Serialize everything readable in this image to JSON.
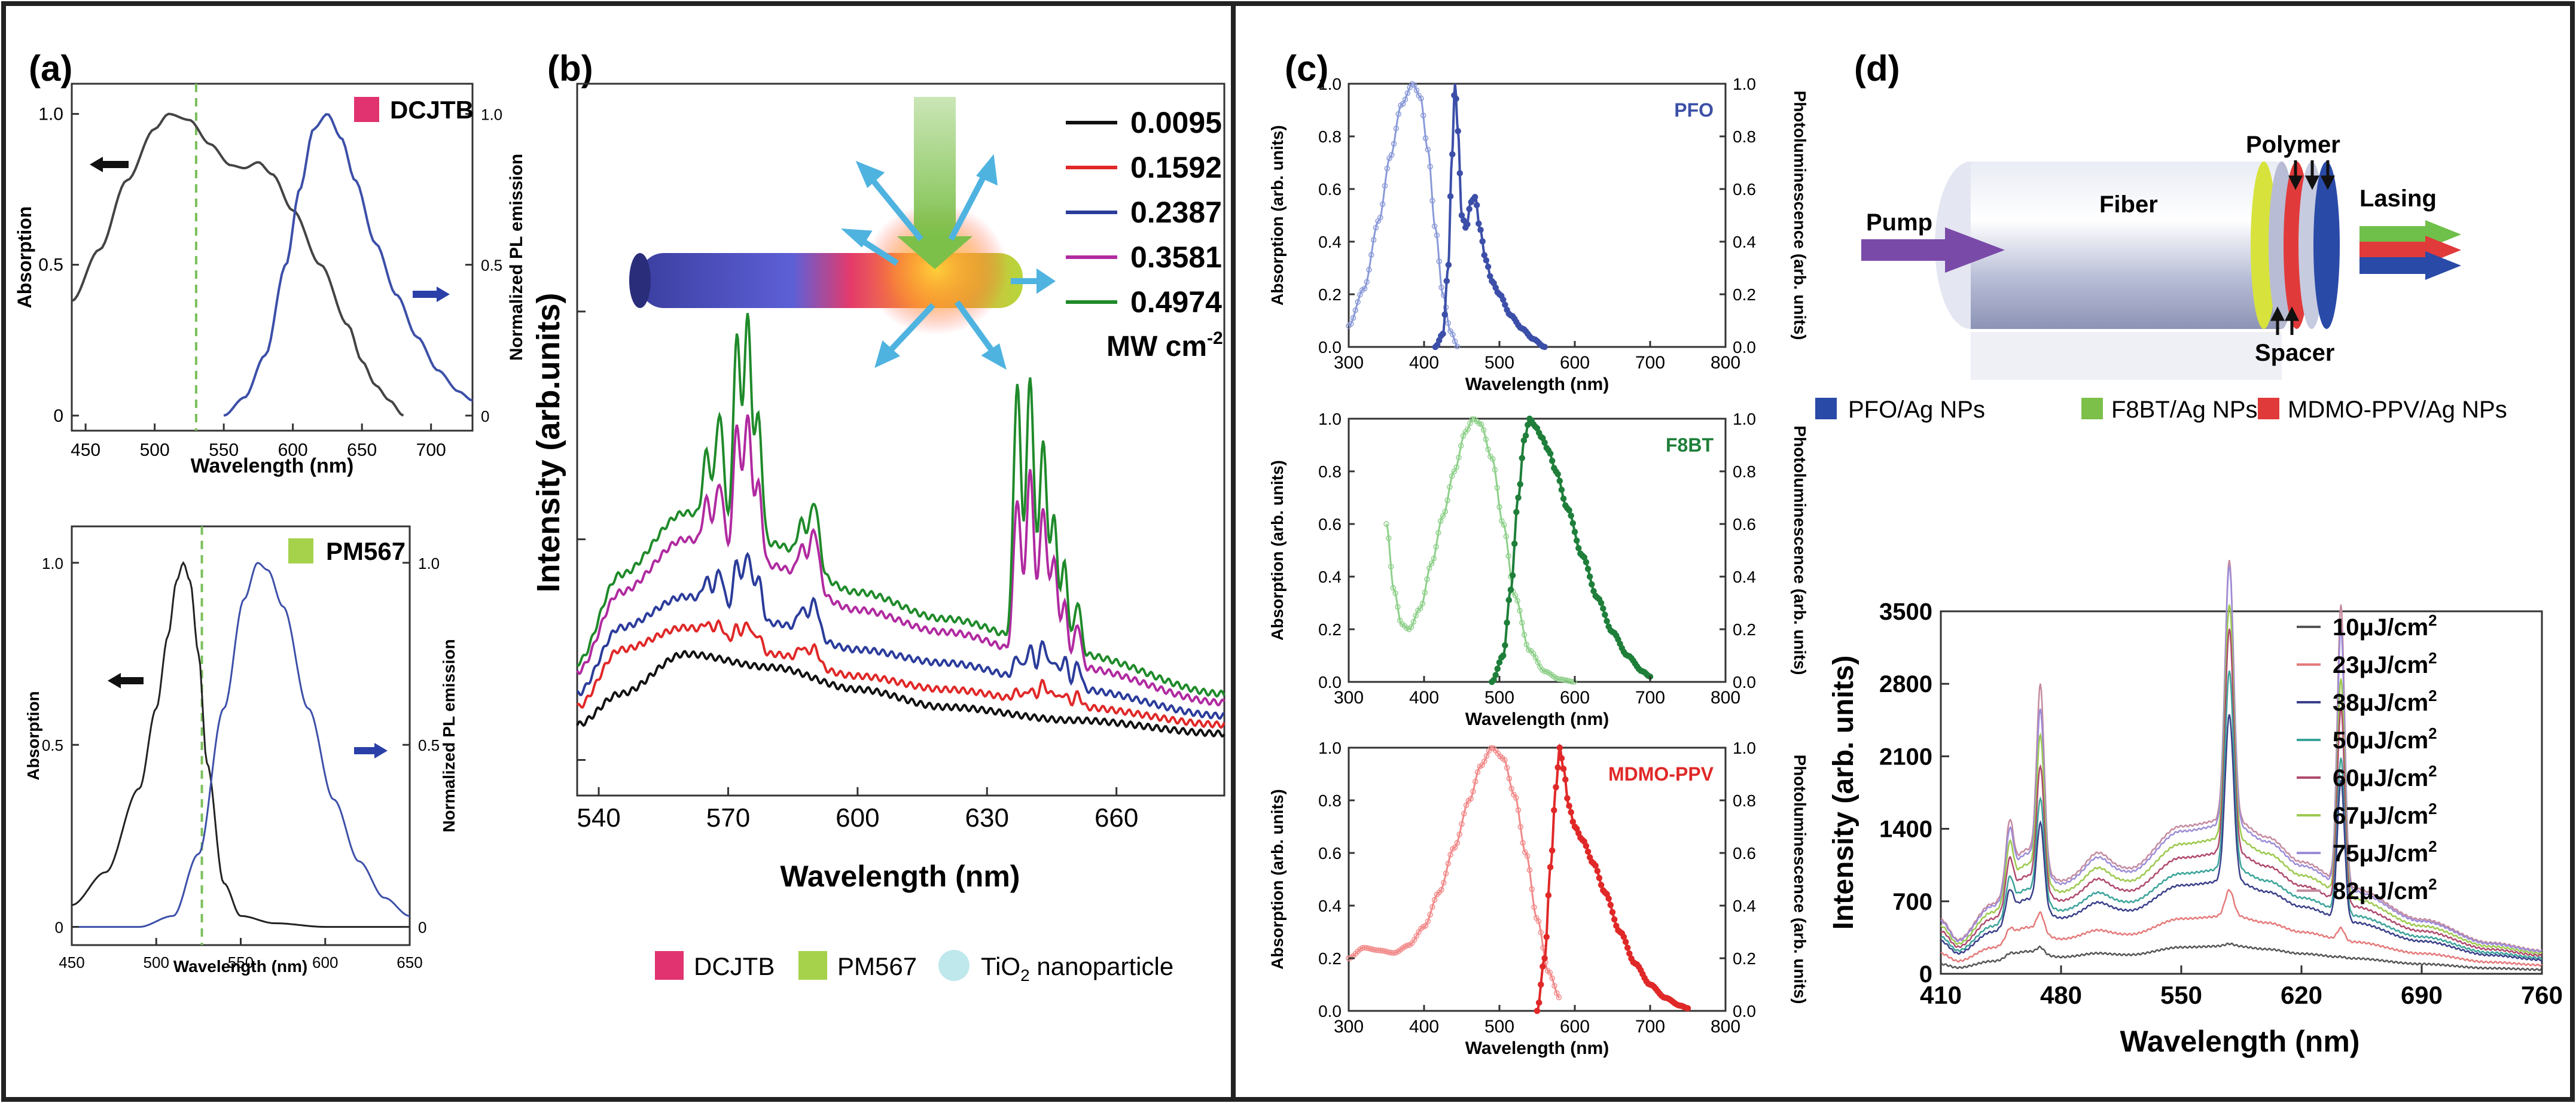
{
  "figure": {
    "panel_labels": [
      "(a)",
      "(b)",
      "(c)",
      "(d)"
    ]
  },
  "colors": {
    "dark": "#444444",
    "blue": "#3c4fa8",
    "green": "#1f7f3a",
    "lightgreen": "#8ed08a",
    "red": "#e02828",
    "lightred": "#f28a8a",
    "dashed": "#7bbf5c",
    "legend_pink": "#e0336f",
    "legend_green": "#a6d24b",
    "legend_teal": "#bfe8ec",
    "pfo_label": "#3c4fa8",
    "f8bt_label": "#1f7f3a",
    "mdmo_label": "#e02828"
  },
  "panel_a_top": {
    "legend": "DCJTB",
    "xlabel": "Wavelength (nm)",
    "ylabel_left": "Absorption",
    "ylabel_right": "Normalized PL emission",
    "xticks": [
      "450",
      "500",
      "550",
      "600",
      "650",
      "700"
    ],
    "yticks_left": [
      "0",
      "0.5",
      "1.0"
    ],
    "yticks_right": [
      "0",
      "0.5",
      "1.0"
    ]
  },
  "panel_a_bottom": {
    "legend": "PM567",
    "xlabel": "Wavelength (nm)",
    "ylabel_left": "Absorption",
    "ylabel_right": "Normalized PL emission",
    "xticks": [
      "450",
      "500",
      "550",
      "600",
      "650"
    ],
    "yticks_left": [
      "0",
      "0.5",
      "1.0"
    ],
    "yticks_right": [
      "0",
      "0.5",
      "1.0"
    ]
  },
  "panel_b": {
    "xlabel": "Wavelength (nm)",
    "ylabel": "Intensity (arb.units)",
    "xticks": [
      "540",
      "570",
      "600",
      "630",
      "660"
    ],
    "legend_unit": "MW cm",
    "legend_unit_sup": "-2",
    "bottom_legend": [
      "DCJTB",
      "PM567",
      "TiO",
      "nanoparticle"
    ],
    "bottom_legend_sub": "2"
  },
  "panel_c": {
    "xlabel": "Wavelength (nm)",
    "ylabel_left": "Absorption (arb. units)",
    "ylabel_right": "Photoluminescence (arb. units)",
    "xticks": [
      "300",
      "400",
      "500",
      "600",
      "700",
      "800"
    ],
    "yticks": [
      "0.0",
      "0.2",
      "0.4",
      "0.6",
      "0.8",
      "1.0"
    ],
    "labels": [
      "PFO",
      "F8BT",
      "MDMO-PPV"
    ]
  },
  "panel_d_schematic": {
    "pump": "Pump",
    "fiber": "Fiber",
    "polymer": "Polymer",
    "lasing": "Lasing",
    "spacer": "Spacer",
    "legend": [
      "PFO/Ag NPs",
      "F8BT/Ag NPs",
      "MDMO-PPV/Ag NPs"
    ]
  },
  "panel_d": {
    "xlabel": "Wavelength (nm)",
    "ylabel": "Intensity (arb. units)",
    "xticks": [
      "410",
      "480",
      "550",
      "620",
      "690",
      "760"
    ],
    "yticks": [
      "0",
      "700",
      "1400",
      "2100",
      "2800",
      "3500"
    ],
    "legend_unit": "J/cm"
  },
  "chart_data": [
    {
      "type": "line",
      "id": "a-top",
      "title": "DCJTB",
      "xlabel": "Wavelength (nm)",
      "ylabel": "Absorption",
      "y2label": "Normalized PL emission",
      "xlim": [
        440,
        730
      ],
      "ylim": [
        -0.05,
        1.1
      ],
      "dashed_line_x": 530,
      "series": [
        {
          "name": "Absorption",
          "color": "#444444",
          "x": [
            440,
            460,
            480,
            500,
            510,
            525,
            540,
            555,
            565,
            575,
            585,
            600,
            620,
            640,
            650,
            660,
            670,
            680
          ],
          "y": [
            0.38,
            0.55,
            0.78,
            0.95,
            1.0,
            0.98,
            0.9,
            0.83,
            0.82,
            0.84,
            0.8,
            0.68,
            0.5,
            0.3,
            0.18,
            0.1,
            0.05,
            0.0
          ]
        },
        {
          "name": "PL emission",
          "color": "#3c4fa8",
          "x": [
            550,
            565,
            580,
            595,
            605,
            615,
            625,
            635,
            645,
            660,
            675,
            690,
            705,
            720,
            730
          ],
          "y": [
            0.0,
            0.06,
            0.2,
            0.5,
            0.75,
            0.95,
            1.0,
            0.92,
            0.78,
            0.57,
            0.4,
            0.26,
            0.15,
            0.08,
            0.05
          ]
        }
      ]
    },
    {
      "type": "line",
      "id": "a-bottom",
      "title": "PM567",
      "xlabel": "Wavelength (nm)",
      "ylabel": "Absorption",
      "y2label": "Normalized PL emission",
      "xlim": [
        450,
        650
      ],
      "ylim": [
        -0.05,
        1.1
      ],
      "dashed_line_x": 527,
      "series": [
        {
          "name": "Absorption",
          "color": "#222222",
          "x": [
            450,
            470,
            490,
            500,
            507,
            512,
            516,
            520,
            525,
            530,
            540,
            550,
            570,
            600,
            650
          ],
          "y": [
            0.06,
            0.15,
            0.38,
            0.6,
            0.8,
            0.95,
            1.0,
            0.95,
            0.75,
            0.45,
            0.12,
            0.03,
            0.01,
            0.0,
            0.0
          ]
        },
        {
          "name": "PL emission",
          "color": "#3c4fa8",
          "x": [
            450,
            490,
            510,
            525,
            540,
            552,
            560,
            566,
            575,
            590,
            605,
            620,
            635,
            650
          ],
          "y": [
            0.0,
            0.0,
            0.03,
            0.2,
            0.6,
            0.9,
            1.0,
            0.98,
            0.88,
            0.6,
            0.35,
            0.18,
            0.08,
            0.03
          ]
        }
      ]
    },
    {
      "type": "line",
      "id": "b",
      "xlabel": "Wavelength (nm)",
      "ylabel": "Intensity (arb.units)",
      "xlim": [
        535,
        685
      ],
      "ylim": [
        0,
        1
      ],
      "legend_title": "MW cm-2",
      "peaks": [
        {
          "x": 565,
          "w": 1.2
        },
        {
          "x": 568,
          "w": 1.3
        },
        {
          "x": 572,
          "w": 1.1
        },
        {
          "x": 574.5,
          "w": 1.2
        },
        {
          "x": 577,
          "w": 1.2
        },
        {
          "x": 587,
          "w": 1.3
        },
        {
          "x": 590,
          "w": 1.5
        },
        {
          "x": 637,
          "w": 1.2
        },
        {
          "x": 640,
          "w": 1.3
        },
        {
          "x": 643,
          "w": 1.2
        },
        {
          "x": 645.5,
          "w": 1.2
        },
        {
          "x": 648,
          "w": 1.1
        },
        {
          "x": 651,
          "w": 1.1
        }
      ],
      "series": [
        {
          "name": "0.0095",
          "color": "#111111",
          "base": [
            0.08,
            0.15,
            0.24,
            0.21,
            0.16,
            0.12,
            0.09,
            0.06
          ],
          "peak_amps": [
            0,
            0,
            0,
            0,
            0,
            0,
            0,
            0,
            0,
            0,
            0,
            0,
            0
          ]
        },
        {
          "name": "0.1592",
          "color": "#e02828",
          "base": [
            0.12,
            0.25,
            0.3,
            0.24,
            0.19,
            0.16,
            0.12,
            0.08
          ],
          "peak_amps": [
            0.02,
            0.03,
            0.04,
            0.06,
            0.04,
            0.03,
            0.04,
            0.02,
            0.03,
            0.05,
            0.03,
            0.03,
            0.03
          ]
        },
        {
          "name": "0.2387",
          "color": "#2b3c9b",
          "base": [
            0.15,
            0.3,
            0.37,
            0.31,
            0.25,
            0.22,
            0.16,
            0.1
          ],
          "peak_amps": [
            0.05,
            0.08,
            0.12,
            0.15,
            0.1,
            0.05,
            0.08,
            0.05,
            0.08,
            0.1,
            0.06,
            0.07,
            0.06
          ]
        },
        {
          "name": "0.3581",
          "color": "#b02aa0",
          "base": [
            0.2,
            0.38,
            0.5,
            0.44,
            0.34,
            0.29,
            0.21,
            0.13
          ],
          "peak_amps": [
            0.1,
            0.15,
            0.3,
            0.33,
            0.18,
            0.07,
            0.13,
            0.35,
            0.42,
            0.35,
            0.24,
            0.14,
            0.1
          ]
        },
        {
          "name": "0.4974",
          "color": "#1f8a2a",
          "base": [
            0.22,
            0.42,
            0.56,
            0.49,
            0.38,
            0.32,
            0.24,
            0.15
          ],
          "peak_amps": [
            0.15,
            0.25,
            0.45,
            0.5,
            0.28,
            0.08,
            0.15,
            0.58,
            0.6,
            0.47,
            0.3,
            0.2,
            0.12
          ]
        }
      ],
      "base_x": [
        535,
        545,
        560,
        580,
        600,
        620,
        650,
        685
      ]
    },
    {
      "type": "line",
      "id": "c-PFO",
      "title": "PFO",
      "xlabel": "Wavelength (nm)",
      "ylabel": "Absorption (arb. units)",
      "y2label": "Photoluminescence (arb. units)",
      "xlim": [
        300,
        800
      ],
      "ylim": [
        0,
        1
      ],
      "series": [
        {
          "name": "Absorption",
          "color": "#8a9ad8",
          "x": [
            300,
            320,
            340,
            355,
            370,
            385,
            395,
            405,
            415,
            425,
            435,
            445
          ],
          "y": [
            0.08,
            0.22,
            0.48,
            0.72,
            0.92,
            1.0,
            0.95,
            0.75,
            0.45,
            0.2,
            0.06,
            0.0
          ]
        },
        {
          "name": "PL",
          "color": "#3c4fa8",
          "x": [
            415,
            425,
            432,
            437,
            441,
            445,
            450,
            456,
            462,
            468,
            474,
            482,
            490,
            500,
            515,
            530,
            545,
            560
          ],
          "y": [
            0.0,
            0.05,
            0.3,
            0.72,
            1.0,
            0.82,
            0.5,
            0.45,
            0.55,
            0.57,
            0.45,
            0.33,
            0.25,
            0.2,
            0.12,
            0.07,
            0.03,
            0.0
          ]
        }
      ]
    },
    {
      "type": "line",
      "id": "c-F8BT",
      "title": "F8BT",
      "xlabel": "Wavelength (nm)",
      "ylabel": "Absorption (arb. units)",
      "y2label": "Photoluminescence (arb. units)",
      "xlim": [
        300,
        800
      ],
      "ylim": [
        0,
        1
      ],
      "series": [
        {
          "name": "Absorption",
          "color": "#8ed08a",
          "x": [
            350,
            360,
            370,
            380,
            395,
            410,
            425,
            440,
            455,
            465,
            475,
            490,
            505,
            520,
            540,
            560,
            580,
            600
          ],
          "y": [
            0.6,
            0.35,
            0.22,
            0.2,
            0.28,
            0.45,
            0.63,
            0.8,
            0.95,
            1.0,
            0.98,
            0.85,
            0.6,
            0.33,
            0.12,
            0.04,
            0.01,
            0.0
          ]
        },
        {
          "name": "PL",
          "color": "#1f7f3a",
          "x": [
            490,
            505,
            515,
            525,
            533,
            540,
            548,
            556,
            565,
            575,
            590,
            610,
            630,
            650,
            670,
            690,
            700
          ],
          "y": [
            0.0,
            0.1,
            0.35,
            0.7,
            0.92,
            1.0,
            0.97,
            0.93,
            0.88,
            0.8,
            0.66,
            0.48,
            0.32,
            0.19,
            0.1,
            0.04,
            0.02
          ]
        }
      ]
    },
    {
      "type": "line",
      "id": "c-MDMO",
      "title": "MDMO-PPV",
      "xlabel": "Wavelength (nm)",
      "ylabel": "Absorption (arb. units)",
      "y2label": "Photoluminescence (arb. units)",
      "xlim": [
        300,
        800
      ],
      "ylim": [
        0,
        1
      ],
      "series": [
        {
          "name": "Absorption",
          "color": "#f28a8a",
          "x": [
            300,
            320,
            340,
            360,
            380,
            400,
            420,
            440,
            460,
            475,
            490,
            505,
            520,
            535,
            550,
            565,
            580
          ],
          "y": [
            0.2,
            0.24,
            0.23,
            0.22,
            0.25,
            0.32,
            0.45,
            0.62,
            0.8,
            0.93,
            1.0,
            0.96,
            0.82,
            0.6,
            0.35,
            0.15,
            0.05
          ]
        },
        {
          "name": "PL",
          "color": "#e02828",
          "x": [
            550,
            560,
            568,
            575,
            580,
            585,
            592,
            600,
            610,
            625,
            640,
            660,
            680,
            700,
            720,
            740,
            750
          ],
          "y": [
            0.0,
            0.2,
            0.55,
            0.85,
            1.0,
            0.92,
            0.78,
            0.7,
            0.65,
            0.56,
            0.45,
            0.3,
            0.18,
            0.1,
            0.05,
            0.02,
            0.01
          ]
        }
      ]
    },
    {
      "type": "line",
      "id": "d",
      "xlabel": "Wavelength (nm)",
      "ylabel": "Intensity (arb. units)",
      "xlim": [
        410,
        760
      ],
      "ylim": [
        0,
        3500
      ],
      "peaks": [
        {
          "x": 450,
          "w": 3
        },
        {
          "x": 468,
          "w": 3
        },
        {
          "x": 502,
          "w": 8
        },
        {
          "x": 578,
          "w": 3.5
        },
        {
          "x": 643,
          "w": 3
        }
      ],
      "base_x": [
        410,
        420,
        440,
        460,
        480,
        500,
        520,
        550,
        580,
        600,
        620,
        650,
        690,
        730,
        760
      ],
      "base_shape": [
        0.35,
        0.22,
        0.45,
        0.8,
        0.6,
        0.7,
        0.68,
        0.95,
        1.0,
        0.88,
        0.72,
        0.55,
        0.35,
        0.2,
        0.15
      ],
      "series": [
        {
          "name": "10",
          "color": "#555555",
          "scale": 270,
          "peak_amps": [
            30,
            60,
            10,
            20,
            10
          ]
        },
        {
          "name": "23",
          "color": "#e57a7a",
          "scale": 560,
          "peak_amps": [
            90,
            180,
            30,
            250,
            120
          ]
        },
        {
          "name": "38",
          "color": "#3a3f8a",
          "scale": 900,
          "peak_amps": [
            250,
            800,
            60,
            1600,
            1350
          ]
        },
        {
          "name": "50",
          "color": "#3aa39a",
          "scale": 1020,
          "peak_amps": [
            300,
            950,
            70,
            1900,
            1500
          ]
        },
        {
          "name": "60",
          "color": "#b04a6e",
          "scale": 1180,
          "peak_amps": [
            380,
            1150,
            90,
            2150,
            1900
          ]
        },
        {
          "name": "67",
          "color": "#9cc94e",
          "scale": 1320,
          "peak_amps": [
            450,
            1350,
            100,
            2250,
            2100
          ]
        },
        {
          "name": "75",
          "color": "#9c8cd8",
          "scale": 1450,
          "peak_amps": [
            500,
            1500,
            110,
            2500,
            2500
          ]
        },
        {
          "name": "82",
          "color": "#c48aa0",
          "scale": 1500,
          "peak_amps": [
            550,
            1700,
            120,
            2500,
            2700
          ]
        }
      ]
    }
  ]
}
